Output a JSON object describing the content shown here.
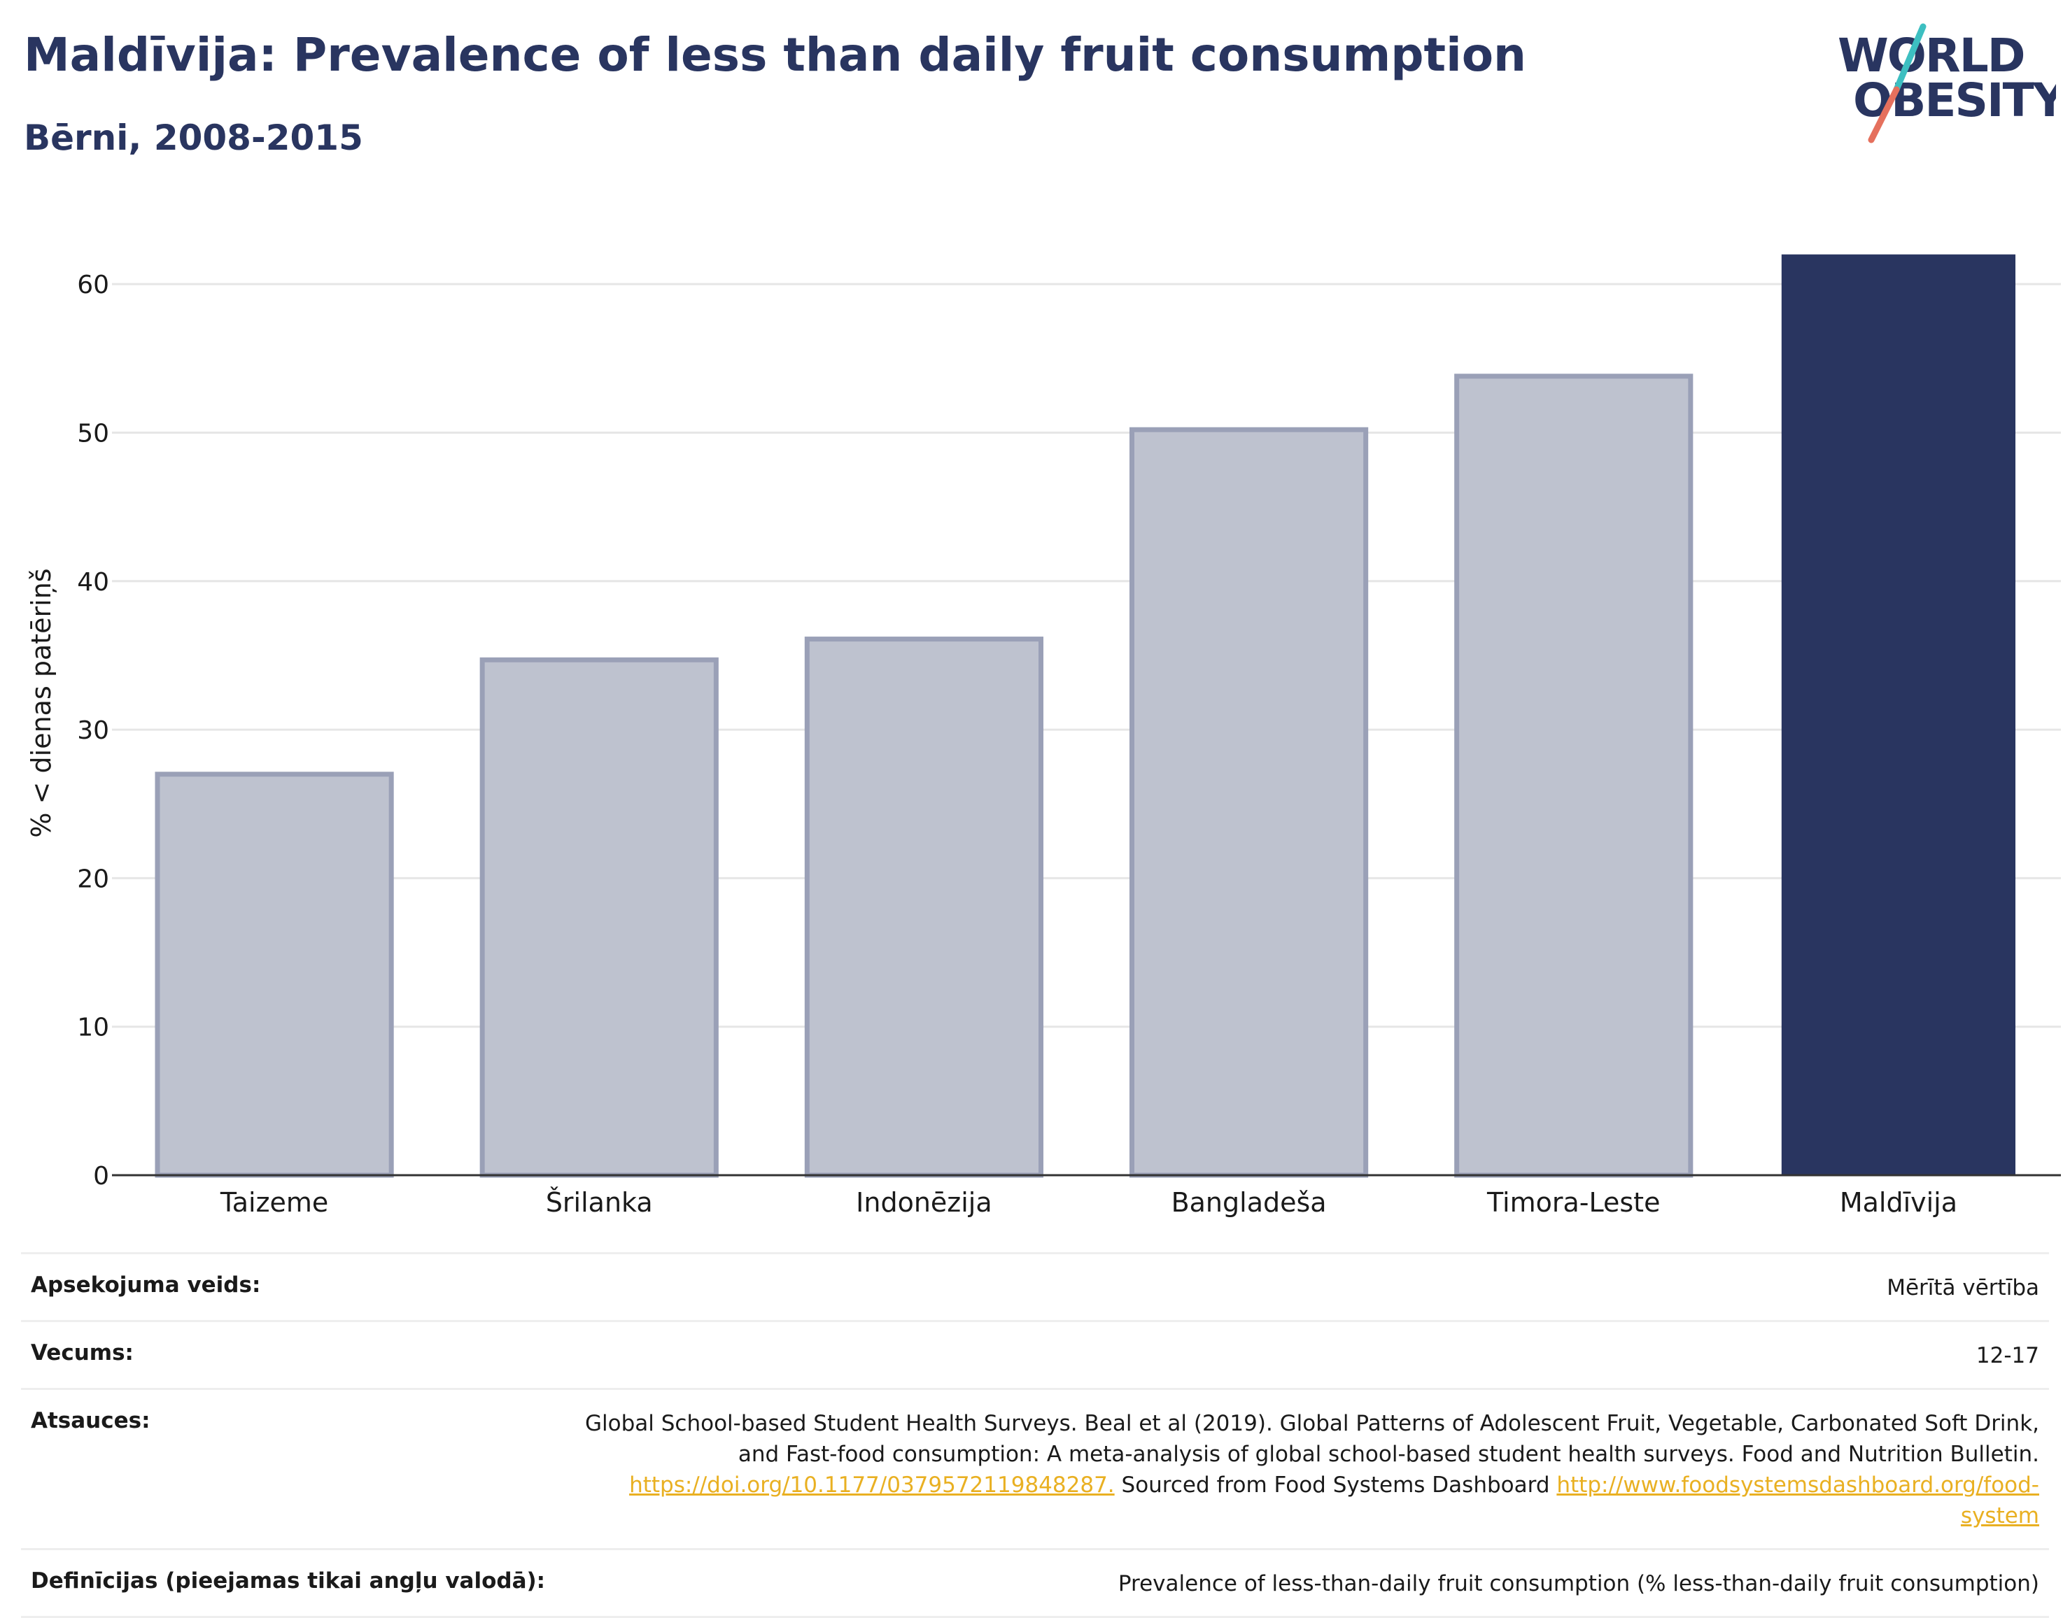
{
  "header": {
    "title": "Maldīvija: Prevalence of less than daily fruit consumption",
    "subtitle": "Bērni, 2008-2015"
  },
  "logo": {
    "line1": "WORLD",
    "line2": "OBESITY",
    "slash_colors": [
      "#3dbfc1",
      "#e5705d"
    ]
  },
  "chart_data": {
    "type": "bar",
    "categories": [
      "Taizeme",
      "Šrilanka",
      "Indonēzija",
      "Bangladeša",
      "Timora-Leste",
      "Maldīvija"
    ],
    "values": [
      27,
      34.7,
      36.1,
      50.2,
      53.8,
      62
    ],
    "highlight": "Maldīvija",
    "ylabel": "% < dienas patēriņš",
    "ylim": [
      0,
      65
    ],
    "yticks": [
      0,
      10,
      20,
      30,
      40,
      50,
      60
    ],
    "grid": true,
    "colors": {
      "highlight": "#293560",
      "other_fill": "#bec2cf",
      "other_stroke": "#9aa0b7",
      "grid": "#e6e6e6",
      "axis": "#333333"
    }
  },
  "meta": {
    "survey_label": "Apsekojuma veids:",
    "survey_value": "Mērītā vērtība",
    "age_label": "Vecums:",
    "age_value": "12-17",
    "refs_label": "Atsauces:",
    "refs_text_1": "Global School-based Student Health Surveys. Beal et al (2019). Global Patterns of Adolescent Fruit, Vegetable, Carbonated Soft Drink, and Fast-food consumption: A meta-analysis of global school-based student health surveys. Food and Nutrition Bulletin.",
    "refs_link_1": "https://doi.org/10.1177/0379572119848287.",
    "refs_text_2": "Sourced from Food Systems Dashboard",
    "refs_link_2": "http://www.foodsystemsdashboard.org/food-system",
    "def_label": "Definīcijas (pieejamas tikai angļu valodā):",
    "def_value": "Prevalence of less-than-daily fruit consumption (% less-than-daily fruit consumption)"
  }
}
